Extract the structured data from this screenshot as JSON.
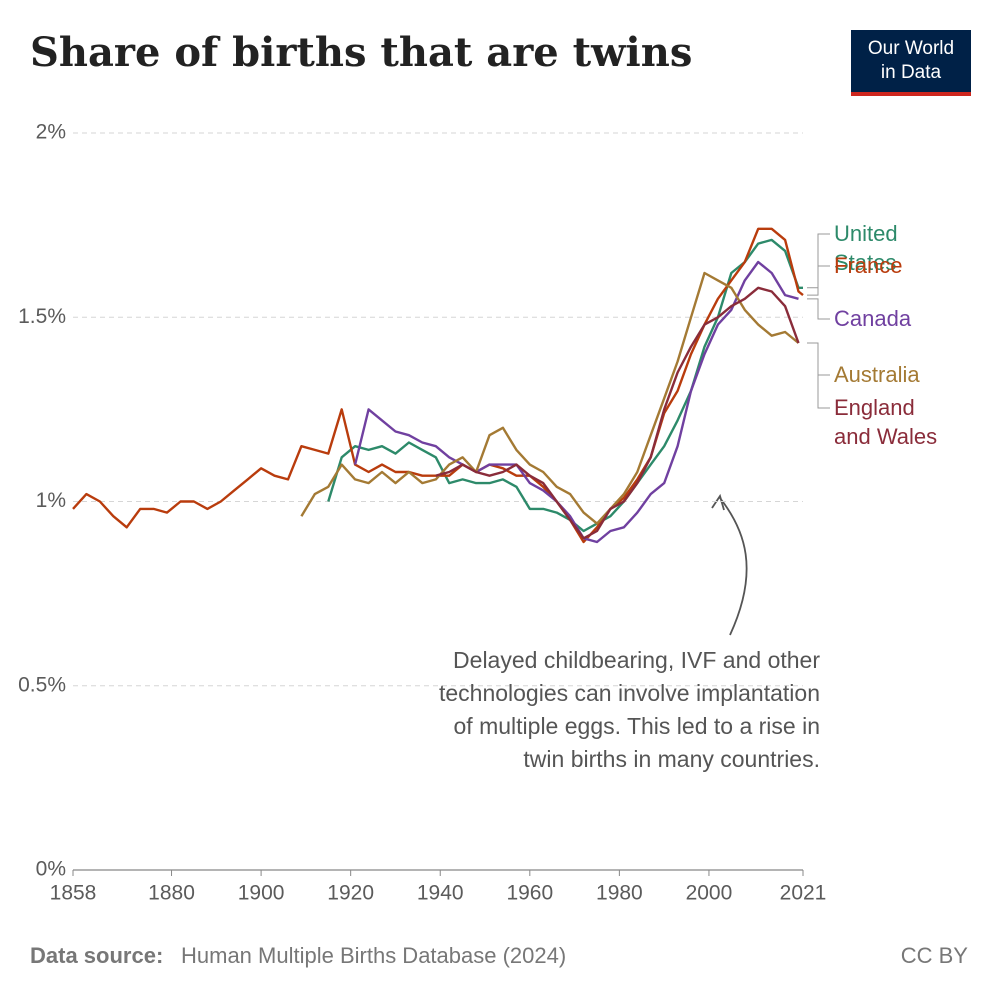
{
  "chart_data": {
    "type": "line",
    "title": "Share of births that are twins",
    "logo": [
      "Our World",
      "in Data"
    ],
    "source_label": "Data source:",
    "source": "Human Multiple Births Database (2024)",
    "license": "CC BY",
    "annotation": [
      "Delayed childbearing, IVF and other",
      "technologies can involve implantation",
      "of multiple eggs. This led to a rise in",
      "twin births in many countries."
    ],
    "x": [
      1858,
      1861,
      1864,
      1867,
      1870,
      1873,
      1876,
      1879,
      1882,
      1885,
      1888,
      1891,
      1894,
      1897,
      1900,
      1903,
      1906,
      1909,
      1912,
      1915,
      1918,
      1921,
      1924,
      1927,
      1930,
      1933,
      1936,
      1939,
      1942,
      1945,
      1948,
      1951,
      1954,
      1957,
      1960,
      1963,
      1966,
      1969,
      1972,
      1975,
      1978,
      1981,
      1984,
      1987,
      1990,
      1993,
      1996,
      1999,
      2002,
      2005,
      2008,
      2011,
      2014,
      2017,
      2020,
      2021
    ],
    "xlim": [
      1858,
      2021
    ],
    "xticks": [
      1858,
      1880,
      1900,
      1920,
      1940,
      1960,
      1980,
      2000,
      2021
    ],
    "ylim": [
      0,
      2
    ],
    "yticks": [
      {
        "value": 0,
        "label": "0%"
      },
      {
        "value": 0.5,
        "label": "0.5%"
      },
      {
        "value": 1,
        "label": "1%"
      },
      {
        "value": 1.5,
        "label": "1.5%"
      },
      {
        "value": 2,
        "label": "2%"
      }
    ],
    "grid": true,
    "series": [
      {
        "name": "United States",
        "color": "#2d8a6a",
        "values": [
          null,
          null,
          null,
          null,
          null,
          null,
          null,
          null,
          null,
          null,
          null,
          null,
          null,
          null,
          null,
          null,
          null,
          null,
          null,
          1.0,
          1.12,
          1.15,
          1.14,
          1.15,
          1.13,
          1.16,
          1.14,
          1.12,
          1.05,
          1.06,
          1.05,
          1.05,
          1.06,
          1.04,
          0.98,
          0.98,
          0.97,
          0.95,
          0.92,
          0.94,
          0.96,
          1.0,
          1.05,
          1.1,
          1.15,
          1.22,
          1.3,
          1.42,
          1.5,
          1.62,
          1.65,
          1.7,
          1.71,
          1.68,
          1.58,
          1.58
        ]
      },
      {
        "name": "France",
        "color": "#b93c0d",
        "values": [
          0.98,
          1.02,
          1.0,
          0.96,
          0.93,
          0.98,
          0.98,
          0.97,
          1.0,
          1.0,
          0.98,
          1.0,
          1.03,
          1.06,
          1.09,
          1.07,
          1.06,
          1.15,
          1.14,
          1.13,
          1.25,
          1.1,
          1.08,
          1.1,
          1.08,
          1.08,
          1.07,
          1.07,
          1.07,
          1.1,
          1.08,
          1.1,
          1.09,
          1.07,
          1.07,
          1.04,
          1.0,
          0.95,
          0.89,
          0.93,
          0.98,
          1.01,
          1.06,
          1.12,
          1.24,
          1.3,
          1.4,
          1.48,
          1.55,
          1.6,
          1.65,
          1.74,
          1.74,
          1.71,
          1.57,
          1.56
        ]
      },
      {
        "name": "Canada",
        "color": "#7040a0",
        "values": [
          null,
          null,
          null,
          null,
          null,
          null,
          null,
          null,
          null,
          null,
          null,
          null,
          null,
          null,
          null,
          null,
          null,
          null,
          null,
          null,
          null,
          1.1,
          1.25,
          1.22,
          1.19,
          1.18,
          1.16,
          1.15,
          1.12,
          1.1,
          1.08,
          1.1,
          1.1,
          1.1,
          1.05,
          1.03,
          1.0,
          0.96,
          0.9,
          0.89,
          0.92,
          0.93,
          0.97,
          1.02,
          1.05,
          1.15,
          1.3,
          1.4,
          1.48,
          1.52,
          1.6,
          1.65,
          1.62,
          1.56,
          1.55,
          null
        ]
      },
      {
        "name": "Australia",
        "color": "#a47a34",
        "values": [
          null,
          null,
          null,
          null,
          null,
          null,
          null,
          null,
          null,
          null,
          null,
          null,
          null,
          null,
          null,
          null,
          null,
          0.96,
          1.02,
          1.04,
          1.1,
          1.06,
          1.05,
          1.08,
          1.05,
          1.08,
          1.05,
          1.06,
          1.1,
          1.12,
          1.08,
          1.18,
          1.2,
          1.14,
          1.1,
          1.08,
          1.04,
          1.02,
          0.97,
          0.94,
          0.98,
          1.02,
          1.08,
          1.18,
          1.28,
          1.38,
          1.5,
          1.62,
          1.6,
          1.58,
          1.52,
          1.48,
          1.45,
          1.46,
          1.43,
          null
        ]
      },
      {
        "name": "England and Wales",
        "color": "#8a2c3a",
        "values": [
          null,
          null,
          null,
          null,
          null,
          null,
          null,
          null,
          null,
          null,
          null,
          null,
          null,
          null,
          null,
          null,
          null,
          null,
          null,
          null,
          null,
          null,
          null,
          null,
          null,
          null,
          null,
          1.07,
          1.08,
          1.1,
          1.08,
          1.07,
          1.08,
          1.1,
          1.07,
          1.05,
          1.0,
          0.95,
          0.9,
          0.92,
          0.98,
          1.0,
          1.05,
          1.12,
          1.25,
          1.35,
          1.42,
          1.48,
          1.5,
          1.53,
          1.55,
          1.58,
          1.57,
          1.53,
          1.43,
          null
        ]
      }
    ]
  }
}
